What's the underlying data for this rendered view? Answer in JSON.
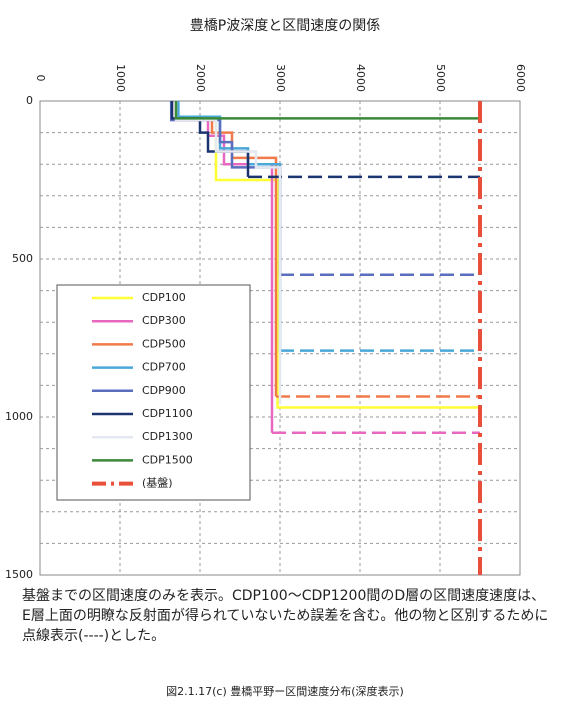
{
  "chart_data": {
    "type": "line",
    "title": "豊橋P波深度と区間速度の関係",
    "xlim": [
      0,
      6000
    ],
    "xticks": [
      0,
      1000,
      2000,
      3000,
      4000,
      5000,
      6000
    ],
    "ylim": [
      1500,
      0
    ],
    "yticks": [
      0,
      500,
      1000,
      1500
    ],
    "yminor": [
      100,
      200,
      300,
      400,
      600,
      700,
      800,
      900,
      1100,
      1200,
      1300,
      1400
    ],
    "grid": true,
    "legend": "lower-left",
    "series": [
      {
        "name": "CDP100",
        "color": "#ffff33",
        "x": [
          1720,
          1720,
          2200,
          2200,
          2970,
          2970,
          5500
        ],
        "y": [
          0,
          60,
          60,
          250,
          250,
          970,
          970
        ],
        "final_dash": false
      },
      {
        "name": "CDP300",
        "color": "#e868c0",
        "x": [
          1650,
          1650,
          2100,
          2100,
          2300,
          2300,
          2900,
          2900,
          5500
        ],
        "y": [
          0,
          60,
          60,
          110,
          110,
          200,
          200,
          1050,
          1050
        ],
        "final_dash": true
      },
      {
        "name": "CDP500",
        "color": "#f07a4a",
        "x": [
          1700,
          1700,
          2150,
          2150,
          2400,
          2400,
          2950,
          2950,
          5500
        ],
        "y": [
          0,
          55,
          55,
          100,
          100,
          180,
          180,
          935,
          935
        ],
        "final_dash": true
      },
      {
        "name": "CDP700",
        "color": "#4aa8d8",
        "x": [
          1730,
          1730,
          2250,
          2250,
          2600,
          2600,
          3000,
          3000,
          5500
        ],
        "y": [
          0,
          50,
          50,
          150,
          150,
          200,
          200,
          790,
          790
        ],
        "final_dash": true
      },
      {
        "name": "CDP900",
        "color": "#5a6ec0",
        "x": [
          1640,
          1640,
          2250,
          2250,
          2400,
          2400,
          3000,
          3000,
          5500
        ],
        "y": [
          0,
          60,
          60,
          130,
          130,
          210,
          210,
          550,
          550
        ],
        "final_dash": true
      },
      {
        "name": "CDP1100",
        "color": "#1c3470",
        "x": [
          1650,
          1650,
          2000,
          2000,
          2100,
          2100,
          2600,
          2600,
          5500
        ],
        "y": [
          0,
          55,
          55,
          100,
          100,
          160,
          160,
          240,
          240
        ],
        "final_dash": true
      },
      {
        "name": "CDP1300",
        "color": "#e4e8f0",
        "x": [
          1700,
          1700,
          2200,
          2200,
          2700,
          2700,
          3000,
          3000
        ],
        "y": [
          0,
          60,
          60,
          160,
          160,
          210,
          210,
          960
        ],
        "final_dash": false
      },
      {
        "name": "CDP1500",
        "color": "#3a8a3a",
        "x": [
          1700,
          1700,
          5500
        ],
        "y": [
          0,
          55,
          55
        ],
        "final_dash": false
      },
      {
        "name": "(基盤)",
        "color": "#e8503a",
        "x": [
          5500,
          5500
        ],
        "y": [
          0,
          1500
        ],
        "final_dash": false
      }
    ],
    "note": "基盤までの区間速度のみを表示。CDP100～CDP1200間のD層の区間速度速度は、E層上面の明瞭な反射面が得られていないため誤差を含む。他の物と区別するために点線表示(----)とした。",
    "caption": "図2.1.17(c)  豊橋平野ー区間速度分布(深度表示)"
  }
}
